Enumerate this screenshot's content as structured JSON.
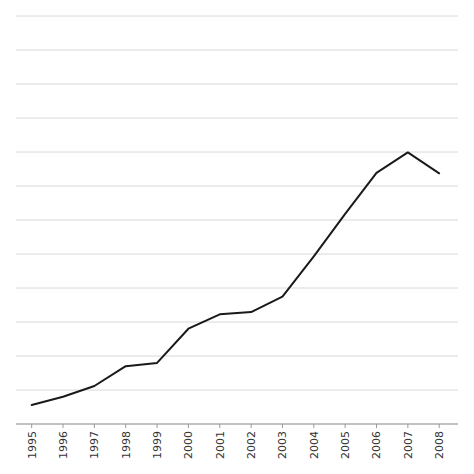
{
  "chart_data": {
    "type": "line",
    "x": [
      1995,
      1996,
      1997,
      1998,
      1999,
      2000,
      2001,
      2002,
      2003,
      2004,
      2005,
      2006,
      2007,
      2008
    ],
    "values": [
      910,
      1000,
      1119,
      1338,
      1374,
      1751,
      1910,
      1935,
      2105,
      2548,
      3017,
      3470,
      3695,
      3465
    ],
    "color": "#1a1a1a",
    "xlim": [
      1994.5,
      2008.6
    ],
    "ylim": [
      700,
      5200
    ],
    "xticks": [
      1995,
      1996,
      1997,
      1998,
      1999,
      2000,
      2001,
      2002,
      2003,
      2004,
      2005,
      2006,
      2007,
      2008
    ],
    "yticks": [
      700,
      1075,
      1450,
      1825,
      2200,
      2575,
      2950,
      3325,
      3700,
      4075,
      4450,
      4825,
      5200
    ],
    "grid": true,
    "tick_labels": "x"
  }
}
